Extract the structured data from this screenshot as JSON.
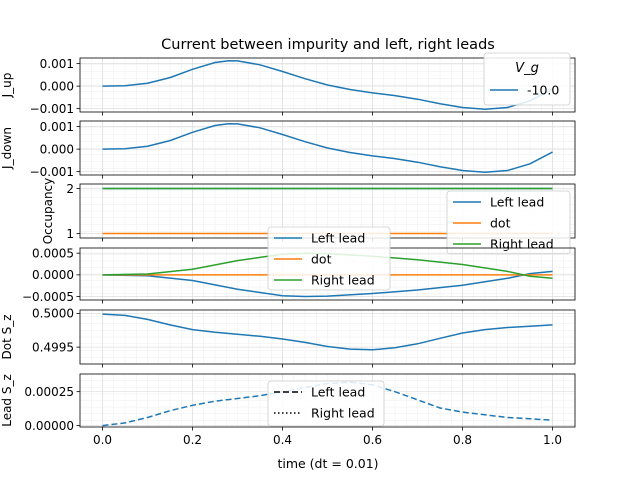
{
  "figure": {
    "title": "Current between impurity and left, right leads",
    "xlabel": "time (dt = 0.01)",
    "xticks": [
      0.0,
      0.2,
      0.4,
      0.6,
      0.8,
      1.0
    ]
  },
  "colors": {
    "blue": "#1f77b4",
    "orange": "#ff7f0e",
    "green": "#2ca02c",
    "black": "#000000"
  },
  "chart_data": [
    {
      "type": "line",
      "ylabel": "J_up",
      "ylim": [
        -0.00115,
        0.00125
      ],
      "yticks": [
        0.001,
        0.0,
        -0.001
      ],
      "ytick_labels": [
        "0.001",
        "0.000",
        "−0.001"
      ],
      "legend": {
        "title": "V_g",
        "placement": "top-right"
      },
      "series": [
        {
          "name": "-10.0",
          "color": "blue",
          "style": "solid",
          "x": [
            0.0,
            0.05,
            0.1,
            0.15,
            0.2,
            0.25,
            0.28,
            0.3,
            0.35,
            0.4,
            0.45,
            0.5,
            0.55,
            0.6,
            0.65,
            0.7,
            0.75,
            0.8,
            0.85,
            0.9,
            0.95,
            1.0
          ],
          "y": [
            0.0,
            2e-05,
            0.00013,
            0.00038,
            0.00075,
            0.00105,
            0.00113,
            0.00112,
            0.00095,
            0.00065,
            0.00033,
            5e-05,
            -0.00015,
            -0.0003,
            -0.00042,
            -0.00058,
            -0.00078,
            -0.00095,
            -0.00103,
            -0.00095,
            -0.00065,
            -0.00013
          ]
        }
      ]
    },
    {
      "type": "line",
      "ylabel": "J_down",
      "ylim": [
        -0.00115,
        0.00125
      ],
      "yticks": [
        0.001,
        0.0,
        -0.001
      ],
      "ytick_labels": [
        "0.001",
        "0.000",
        "−0.001"
      ],
      "series": [
        {
          "name": "",
          "color": "blue",
          "style": "solid",
          "x": [
            0.0,
            0.05,
            0.1,
            0.15,
            0.2,
            0.25,
            0.28,
            0.3,
            0.35,
            0.4,
            0.45,
            0.5,
            0.55,
            0.6,
            0.65,
            0.7,
            0.75,
            0.8,
            0.85,
            0.9,
            0.95,
            1.0
          ],
          "y": [
            0.0,
            2e-05,
            0.00013,
            0.00038,
            0.00075,
            0.00105,
            0.00113,
            0.00112,
            0.00095,
            0.00065,
            0.00033,
            5e-05,
            -0.00015,
            -0.0003,
            -0.00042,
            -0.00058,
            -0.00078,
            -0.00095,
            -0.00103,
            -0.00095,
            -0.00065,
            -0.00013
          ]
        }
      ]
    },
    {
      "type": "line",
      "ylabel": "Occupancy",
      "ylim": [
        0.9,
        2.1
      ],
      "yticks": [
        2,
        1
      ],
      "ytick_labels": [
        "2",
        "1"
      ],
      "legend": {
        "placement": "right"
      },
      "series": [
        {
          "name": "Left lead",
          "color": "blue",
          "style": "solid",
          "x": [
            0.0,
            1.0
          ],
          "y": [
            2.0,
            2.0
          ]
        },
        {
          "name": "dot",
          "color": "orange",
          "style": "solid",
          "x": [
            0.0,
            1.0
          ],
          "y": [
            1.0,
            1.0
          ]
        },
        {
          "name": "Right lead",
          "color": "green",
          "style": "solid",
          "x": [
            0.0,
            1.0
          ],
          "y": [
            2.0,
            2.0
          ]
        }
      ]
    },
    {
      "type": "line",
      "ylabel": "",
      "ylim": [
        -0.00058,
        0.00062
      ],
      "yticks": [
        0.0005,
        0.0,
        -0.0005
      ],
      "ytick_labels": [
        "0.0005",
        "0.0000",
        "−0.0005"
      ],
      "legend": {
        "placement": "center"
      },
      "series": [
        {
          "name": "Left lead",
          "color": "blue",
          "style": "solid",
          "x": [
            0.0,
            0.1,
            0.2,
            0.3,
            0.4,
            0.45,
            0.5,
            0.6,
            0.7,
            0.8,
            0.9,
            0.95,
            1.0
          ],
          "y": [
            0.0,
            -2e-05,
            -0.00013,
            -0.00033,
            -0.00048,
            -0.0005,
            -0.00049,
            -0.00043,
            -0.00035,
            -0.00024,
            -8e-05,
            3e-05,
            8e-05
          ]
        },
        {
          "name": "dot",
          "color": "orange",
          "style": "solid",
          "x": [
            0.0,
            1.0
          ],
          "y": [
            0.0,
            0.0
          ]
        },
        {
          "name": "Right lead",
          "color": "green",
          "style": "solid",
          "x": [
            0.0,
            0.1,
            0.2,
            0.3,
            0.4,
            0.45,
            0.5,
            0.6,
            0.7,
            0.8,
            0.9,
            0.95,
            1.0
          ],
          "y": [
            0.0,
            2e-05,
            0.00013,
            0.00033,
            0.00048,
            0.0005,
            0.00049,
            0.00043,
            0.00035,
            0.00024,
            8e-05,
            -3e-05,
            -8e-05
          ]
        }
      ]
    },
    {
      "type": "line",
      "ylabel": "Dot S_z",
      "ylim": [
        0.49925,
        0.50005
      ],
      "yticks": [
        0.5,
        0.4995
      ],
      "ytick_labels": [
        "0.5000",
        "0.4995"
      ],
      "series": [
        {
          "name": "",
          "color": "blue",
          "style": "solid",
          "x": [
            0.0,
            0.05,
            0.1,
            0.15,
            0.2,
            0.25,
            0.3,
            0.35,
            0.4,
            0.45,
            0.5,
            0.55,
            0.6,
            0.65,
            0.7,
            0.75,
            0.8,
            0.85,
            0.9,
            0.95,
            1.0
          ],
          "y": [
            0.49999,
            0.49997,
            0.49991,
            0.49983,
            0.49976,
            0.49972,
            0.49969,
            0.49966,
            0.49962,
            0.49957,
            0.49951,
            0.49947,
            0.49946,
            0.49949,
            0.49955,
            0.49963,
            0.49971,
            0.49976,
            0.49979,
            0.49981,
            0.49983
          ]
        }
      ]
    },
    {
      "type": "line",
      "ylabel": "Lead S_z",
      "ylim": [
        -1e-05,
        0.00038
      ],
      "yticks": [
        0.00025,
        0.0
      ],
      "ytick_labels": [
        "0.00025",
        "0.00000"
      ],
      "legend": {
        "placement": "center"
      },
      "series": [
        {
          "name": "Left lead",
          "color": "black",
          "style": "dashed",
          "legend_only": true,
          "x": [],
          "y": []
        },
        {
          "name": "Right lead",
          "color": "black",
          "style": "dotted",
          "legend_only": true,
          "x": [],
          "y": []
        },
        {
          "name": "",
          "color": "blue",
          "style": "dashed",
          "x": [
            0.0,
            0.05,
            0.1,
            0.15,
            0.2,
            0.25,
            0.3,
            0.35,
            0.4,
            0.45,
            0.5,
            0.55,
            0.6,
            0.65,
            0.7,
            0.75,
            0.8,
            0.85,
            0.9,
            0.95,
            1.0
          ],
          "y": [
            0.0,
            2e-05,
            6e-05,
            0.00011,
            0.00015,
            0.00018,
            0.0002,
            0.00022,
            0.00025,
            0.00028,
            0.00031,
            0.00032,
            0.0003,
            0.00025,
            0.00019,
            0.00013,
            0.0001,
            8e-05,
            6e-05,
            5e-05,
            4e-05
          ]
        }
      ]
    }
  ]
}
